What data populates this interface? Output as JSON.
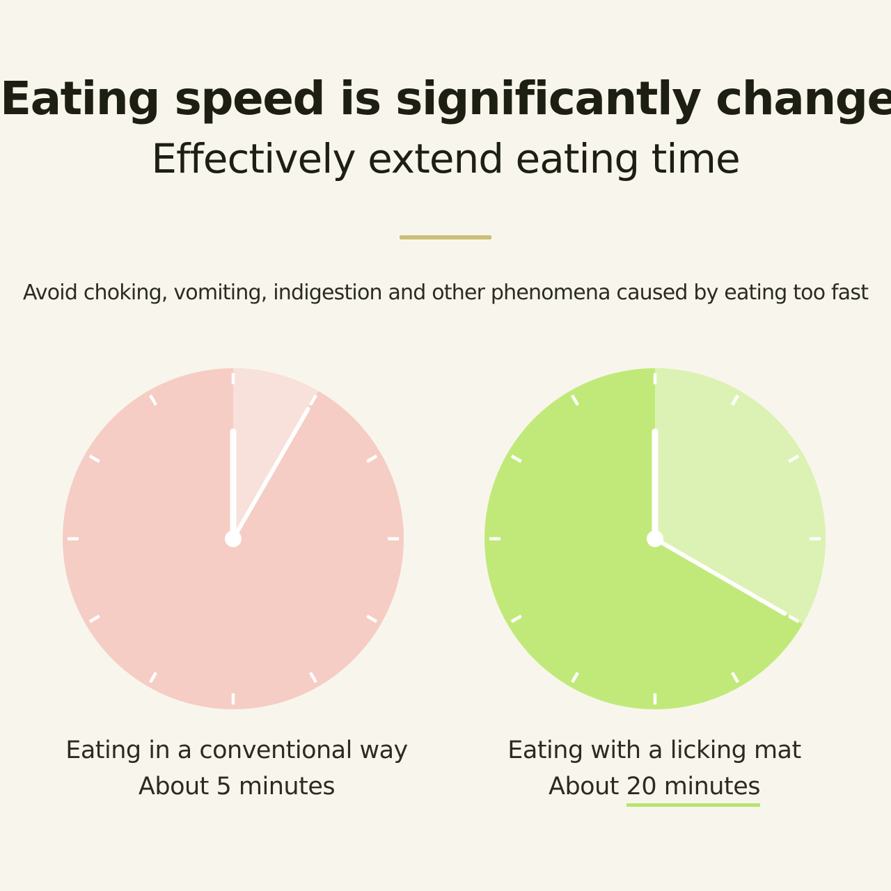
{
  "heading": {
    "title": "Eating speed is significantly changed",
    "subtitle": "Effectively extend eating time"
  },
  "note": "Avoid choking, vomiting, indigestion and other phenomena caused by eating too fast",
  "colors": {
    "background": "#f8f6ec",
    "divider": "#c9bf76",
    "conventional_face": "#f5cdc4",
    "conventional_elapsed": "#f7e1da",
    "licking_face": "#c1e97a",
    "licking_elapsed": "#dcf2b4",
    "underline": "#b9e46e"
  },
  "clocks": [
    {
      "id": "conventional",
      "label": "Eating in a conventional way",
      "time_prefix": "About ",
      "time_value": "5 minutes",
      "minutes": 5,
      "face_color": "#f5cdc4",
      "elapsed_color": "#f7e1da",
      "emphasized": false
    },
    {
      "id": "licking-mat",
      "label": "Eating with a licking mat",
      "time_prefix": "About ",
      "time_value": "20 minutes",
      "minutes": 20,
      "face_color": "#c1e97a",
      "elapsed_color": "#dcf2b4",
      "emphasized": true
    }
  ]
}
